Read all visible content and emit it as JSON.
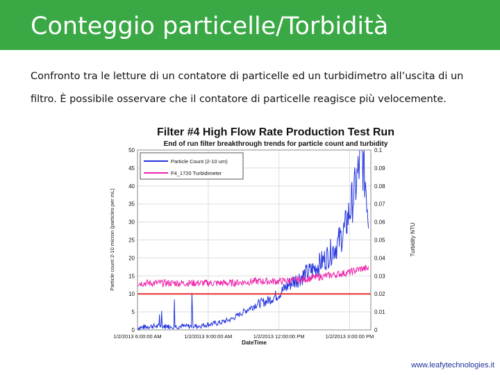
{
  "slide": {
    "title": "Conteggio particelle/Torbidità",
    "description": "Confronto tra le letture di un contatore di particelle ed un turbidimetro all’uscita di un filtro. È possibile osservare che il contatore di particelle reagisce più velocemente.",
    "footer": "www.leafytechnologies.it"
  },
  "chart_data": {
    "type": "line",
    "title": "Filter #4 High Flow Rate Production Test Run",
    "subtitle": "End of run filter breakthrough trends for particle count and turbidity",
    "xlabel": "DateTime",
    "ylabel": "Particle count 2-10 micron (particles per mL)",
    "y2label": "Turbidity NTU",
    "x_ticks": [
      "1/2/2013 6:00:00 AM",
      "1/2/2013 9:00:00 AM",
      "1/2/2013 12:00:00 PM",
      "1/2/2013 3:00:00 PM"
    ],
    "x_range_hours": [
      6,
      15.9
    ],
    "ylim": [
      0,
      50
    ],
    "y_ticks": [
      0,
      5,
      10,
      15,
      20,
      25,
      30,
      35,
      40,
      45,
      50
    ],
    "y2lim": [
      0,
      0.1
    ],
    "y2_ticks": [
      "0",
      "0.01",
      "0.02",
      "0.03",
      "0.04",
      "0.05",
      "0.06",
      "0.07",
      "0.08",
      "0.09",
      "0.1"
    ],
    "grid": true,
    "legend_position": "top-left",
    "series": [
      {
        "name": "Particle Count (2-10 um)",
        "axis": "left",
        "color": "#2233dd",
        "x_hours": [
          6.0,
          6.5,
          7.0,
          7.5,
          8.0,
          8.5,
          9.0,
          9.5,
          10.0,
          10.5,
          11.0,
          11.5,
          12.0,
          12.5,
          13.0,
          13.5,
          14.0,
          14.5,
          14.8,
          15.0,
          15.2,
          15.4,
          15.5,
          15.6,
          15.7,
          15.8
        ],
        "values": [
          0.5,
          1,
          1,
          1,
          1,
          1,
          1.5,
          2,
          3,
          5,
          7,
          8,
          10,
          13,
          15,
          17,
          20,
          24,
          28,
          33,
          38,
          45,
          50,
          44,
          40,
          31
        ]
      },
      {
        "name": "F4_1720 Turbidimeter",
        "axis": "right",
        "color": "#ee22aa",
        "x_hours": [
          6.0,
          7.0,
          8.0,
          9.0,
          10.0,
          11.0,
          12.0,
          13.0,
          14.0,
          15.0,
          15.5,
          15.8
        ],
        "values": [
          0.026,
          0.026,
          0.026,
          0.026,
          0.026,
          0.027,
          0.027,
          0.028,
          0.03,
          0.032,
          0.034,
          0.034
        ]
      },
      {
        "name": "",
        "axis": "left",
        "color": "#e83030",
        "x_hours": [
          6.0,
          15.9
        ],
        "values": [
          10,
          10
        ]
      }
    ]
  }
}
